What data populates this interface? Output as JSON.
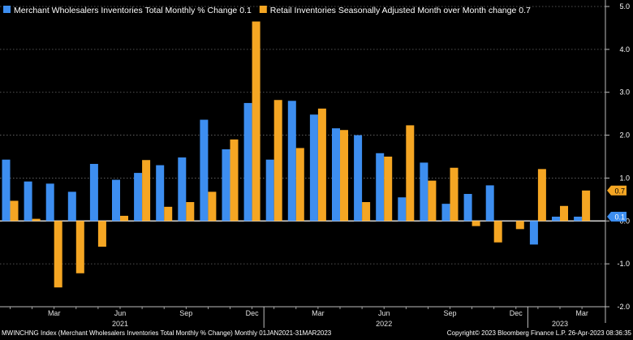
{
  "chart_data": {
    "type": "bar",
    "categories": [
      "Jan 2021",
      "Feb 2021",
      "Mar 2021",
      "Apr 2021",
      "May 2021",
      "Jun 2021",
      "Jul 2021",
      "Aug 2021",
      "Sep 2021",
      "Oct 2021",
      "Nov 2021",
      "Dec 2021",
      "Jan 2022",
      "Feb 2022",
      "Mar 2022",
      "Apr 2022",
      "May 2022",
      "Jun 2022",
      "Jul 2022",
      "Aug 2022",
      "Sep 2022",
      "Oct 2022",
      "Nov 2022",
      "Dec 2022",
      "Jan 2023",
      "Feb 2023",
      "Mar 2023"
    ],
    "series": [
      {
        "name": "Merchant Wholesalers Inventories Total Monthly % Change 0.1",
        "color": "#3d8ef0",
        "values": [
          1.43,
          0.92,
          0.87,
          0.68,
          1.33,
          0.96,
          1.12,
          1.3,
          1.48,
          2.36,
          1.67,
          2.75,
          1.43,
          2.8,
          2.48,
          2.16,
          2.0,
          1.58,
          0.55,
          1.36,
          0.4,
          0.63,
          0.83,
          0.0,
          -0.55,
          0.1,
          0.1
        ]
      },
      {
        "name": "Retail Inventories Seasonally Adjusted Month over Month change 0.7",
        "color": "#f5a623",
        "values": [
          0.47,
          0.05,
          -1.55,
          -1.22,
          -0.6,
          0.12,
          1.42,
          0.33,
          0.44,
          0.68,
          1.9,
          4.65,
          2.82,
          1.7,
          2.62,
          2.12,
          0.44,
          1.5,
          2.23,
          0.94,
          1.24,
          -0.12,
          -0.5,
          -0.19,
          1.21,
          0.35,
          0.71
        ]
      }
    ],
    "x_tick_labels": [
      "Mar",
      "Jun",
      "Sep",
      "Dec",
      "Mar",
      "Jun",
      "Sep",
      "Dec",
      "Mar"
    ],
    "x_tick_indices": [
      2,
      5,
      8,
      11,
      14,
      17,
      20,
      23,
      26
    ],
    "year_labels": [
      "2021",
      "2022",
      "2023"
    ],
    "year_label_indices": [
      5,
      17,
      25
    ],
    "year_separator_indices": [
      12,
      24
    ],
    "ylim": [
      -2.0,
      5.0
    ],
    "yticks": [
      "5.0",
      "4.0",
      "3.0",
      "2.0",
      "1.0",
      "0.0",
      "-1.0",
      "-2.0"
    ],
    "ytick_values": [
      5,
      4,
      3,
      2,
      1,
      0,
      -1,
      -2
    ],
    "last_value_badges": [
      {
        "label": "0.7",
        "value": 0.71,
        "color": "#f5a623"
      },
      {
        "label": "0.1",
        "value": 0.1,
        "color": "#3d8ef0"
      }
    ],
    "legend": [
      {
        "label": "Merchant Wholesalers Inventories Total Monthly % Change 0.1",
        "color": "#3d8ef0"
      },
      {
        "label": "Retail Inventories Seasonally Adjusted Month over Month change 0.7",
        "color": "#f5a623"
      }
    ],
    "grid": true,
    "legend_placement": "top-left"
  },
  "footer": {
    "left": "MWINCHNG Index (Merchant Wholesalers Inventories Total Monthly % Change)  Monthly 01JAN2021-31MAR2023",
    "right": "Copyright© 2023 Bloomberg Finance L.P.     26-Apr-2023 08:36:35"
  }
}
